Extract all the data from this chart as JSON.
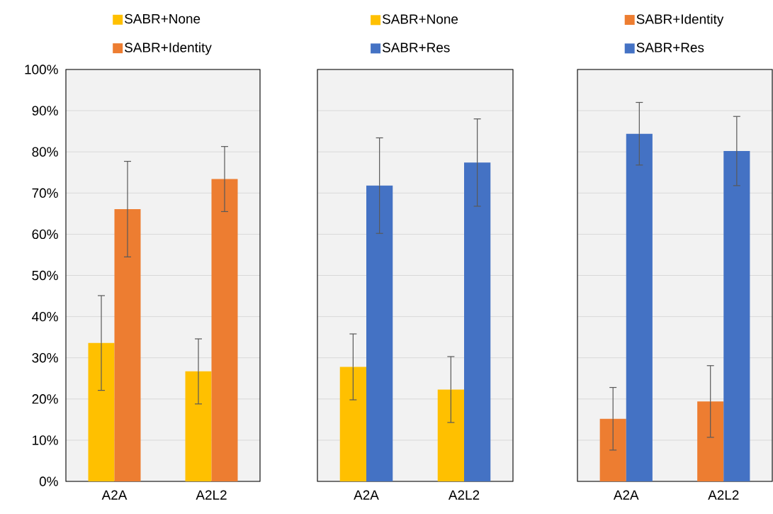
{
  "chart_data": [
    {
      "type": "bar",
      "categories": [
        "A2A",
        "A2L2"
      ],
      "series": [
        {
          "name": "SABR+None",
          "color": "#ffc000",
          "values": [
            33.6,
            26.7
          ],
          "errors": [
            11.5,
            7.9
          ]
        },
        {
          "name": "SABR+Identity",
          "color": "#ed7d31",
          "values": [
            66.1,
            73.4
          ],
          "errors": [
            11.6,
            7.9
          ]
        }
      ],
      "ylim": [
        0,
        100
      ],
      "yticks": [
        {
          "value": 0,
          "label": "0%"
        },
        {
          "value": 10,
          "label": "10%"
        },
        {
          "value": 20,
          "label": "20%"
        },
        {
          "value": 30,
          "label": "30%"
        },
        {
          "value": 40,
          "label": "40%"
        },
        {
          "value": 50,
          "label": "50%"
        },
        {
          "value": 60,
          "label": "60%"
        },
        {
          "value": 70,
          "label": "70%"
        },
        {
          "value": 80,
          "label": "80%"
        },
        {
          "value": 90,
          "label": "90%"
        },
        {
          "value": 100,
          "label": "100%"
        }
      ],
      "grid": "y",
      "legend": "top"
    },
    {
      "type": "bar",
      "categories": [
        "A2A",
        "A2L2"
      ],
      "series": [
        {
          "name": "SABR+None",
          "color": "#ffc000",
          "values": [
            27.8,
            22.3
          ],
          "errors": [
            8.0,
            8.0
          ]
        },
        {
          "name": "SABR+Res",
          "color": "#4472c4",
          "values": [
            71.8,
            77.4
          ],
          "errors": [
            11.6,
            10.6
          ]
        }
      ],
      "ylim": [
        0,
        100
      ],
      "yticks": [
        0,
        10,
        20,
        30,
        40,
        50,
        60,
        70,
        80,
        90,
        100
      ],
      "tick_labels": "x",
      "grid": "y",
      "legend": "top"
    },
    {
      "type": "bar",
      "categories": [
        "A2A",
        "A2L2"
      ],
      "series": [
        {
          "name": "SABR+Identity",
          "color": "#ed7d31",
          "values": [
            15.2,
            19.4
          ],
          "errors": [
            7.6,
            8.7
          ]
        },
        {
          "name": "SABR+Res",
          "color": "#4472c4",
          "values": [
            84.4,
            80.2
          ],
          "errors": [
            7.6,
            8.4
          ]
        }
      ],
      "ylim": [
        0,
        100
      ],
      "yticks": [
        0,
        10,
        20,
        30,
        40,
        50,
        60,
        70,
        80,
        90,
        100
      ],
      "tick_labels": "x",
      "grid": "y",
      "legend": "top"
    }
  ]
}
